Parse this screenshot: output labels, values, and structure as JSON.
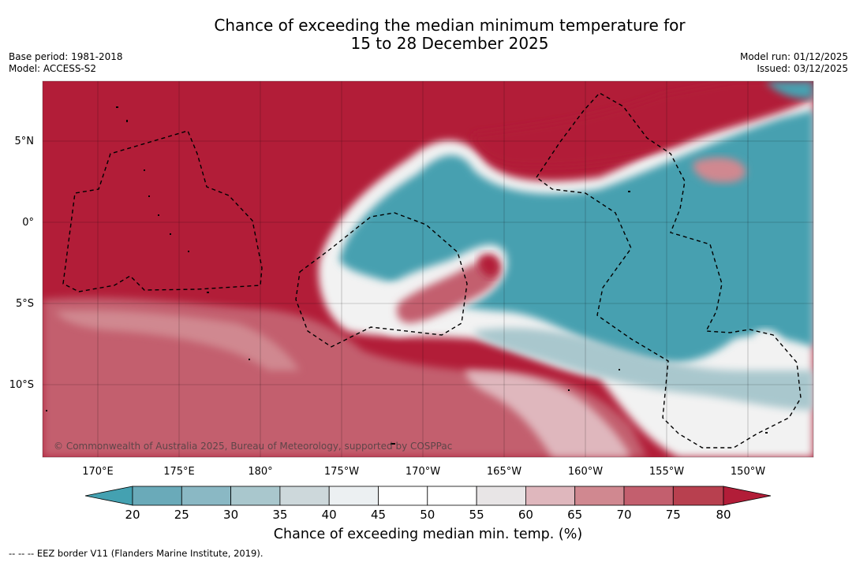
{
  "title": {
    "line1": "Chance of exceeding the median minimum temperature for",
    "line2": "15 to 28 December 2025"
  },
  "meta": {
    "base_period": "Base period: 1981-2018",
    "model": "Model: ACCESS-S2",
    "model_run": "Model run: 01/12/2025",
    "issued": "Issued: 03/12/2025"
  },
  "map": {
    "latitude_labels": [
      "5°N",
      "0°",
      "5°S",
      "10°S"
    ],
    "longitude_labels": [
      "170°E",
      "175°E",
      "180°",
      "175°W",
      "170°W",
      "165°W",
      "160°W",
      "155°W",
      "150°W"
    ],
    "copyright": "© Commonwealth of Australia 2025, Bureau of Meteorology, supported by COSPPac",
    "colors": {
      "high": "#b21d38",
      "low": "#47a0b0",
      "neutral": "#f2f2f2"
    }
  },
  "colorbar": {
    "ticks": [
      "20",
      "25",
      "30",
      "35",
      "40",
      "45",
      "50",
      "55",
      "60",
      "65",
      "70",
      "75",
      "80"
    ],
    "colors": [
      "#44a1b1",
      "#6aaab9",
      "#8ab8c4",
      "#a9c7cd",
      "#cdd8db",
      "#ecf0f2",
      "#ffffff",
      "#ffffff",
      "#e8e5e6",
      "#dfb7bd",
      "#d08890",
      "#c35f6e",
      "#b8404f",
      "#b21d38"
    ],
    "title": "Chance of exceeding median min. temp. (%)"
  },
  "footnote": "--  --  -- EEZ border V11 (Flanders Marine Institute, 2019)."
}
